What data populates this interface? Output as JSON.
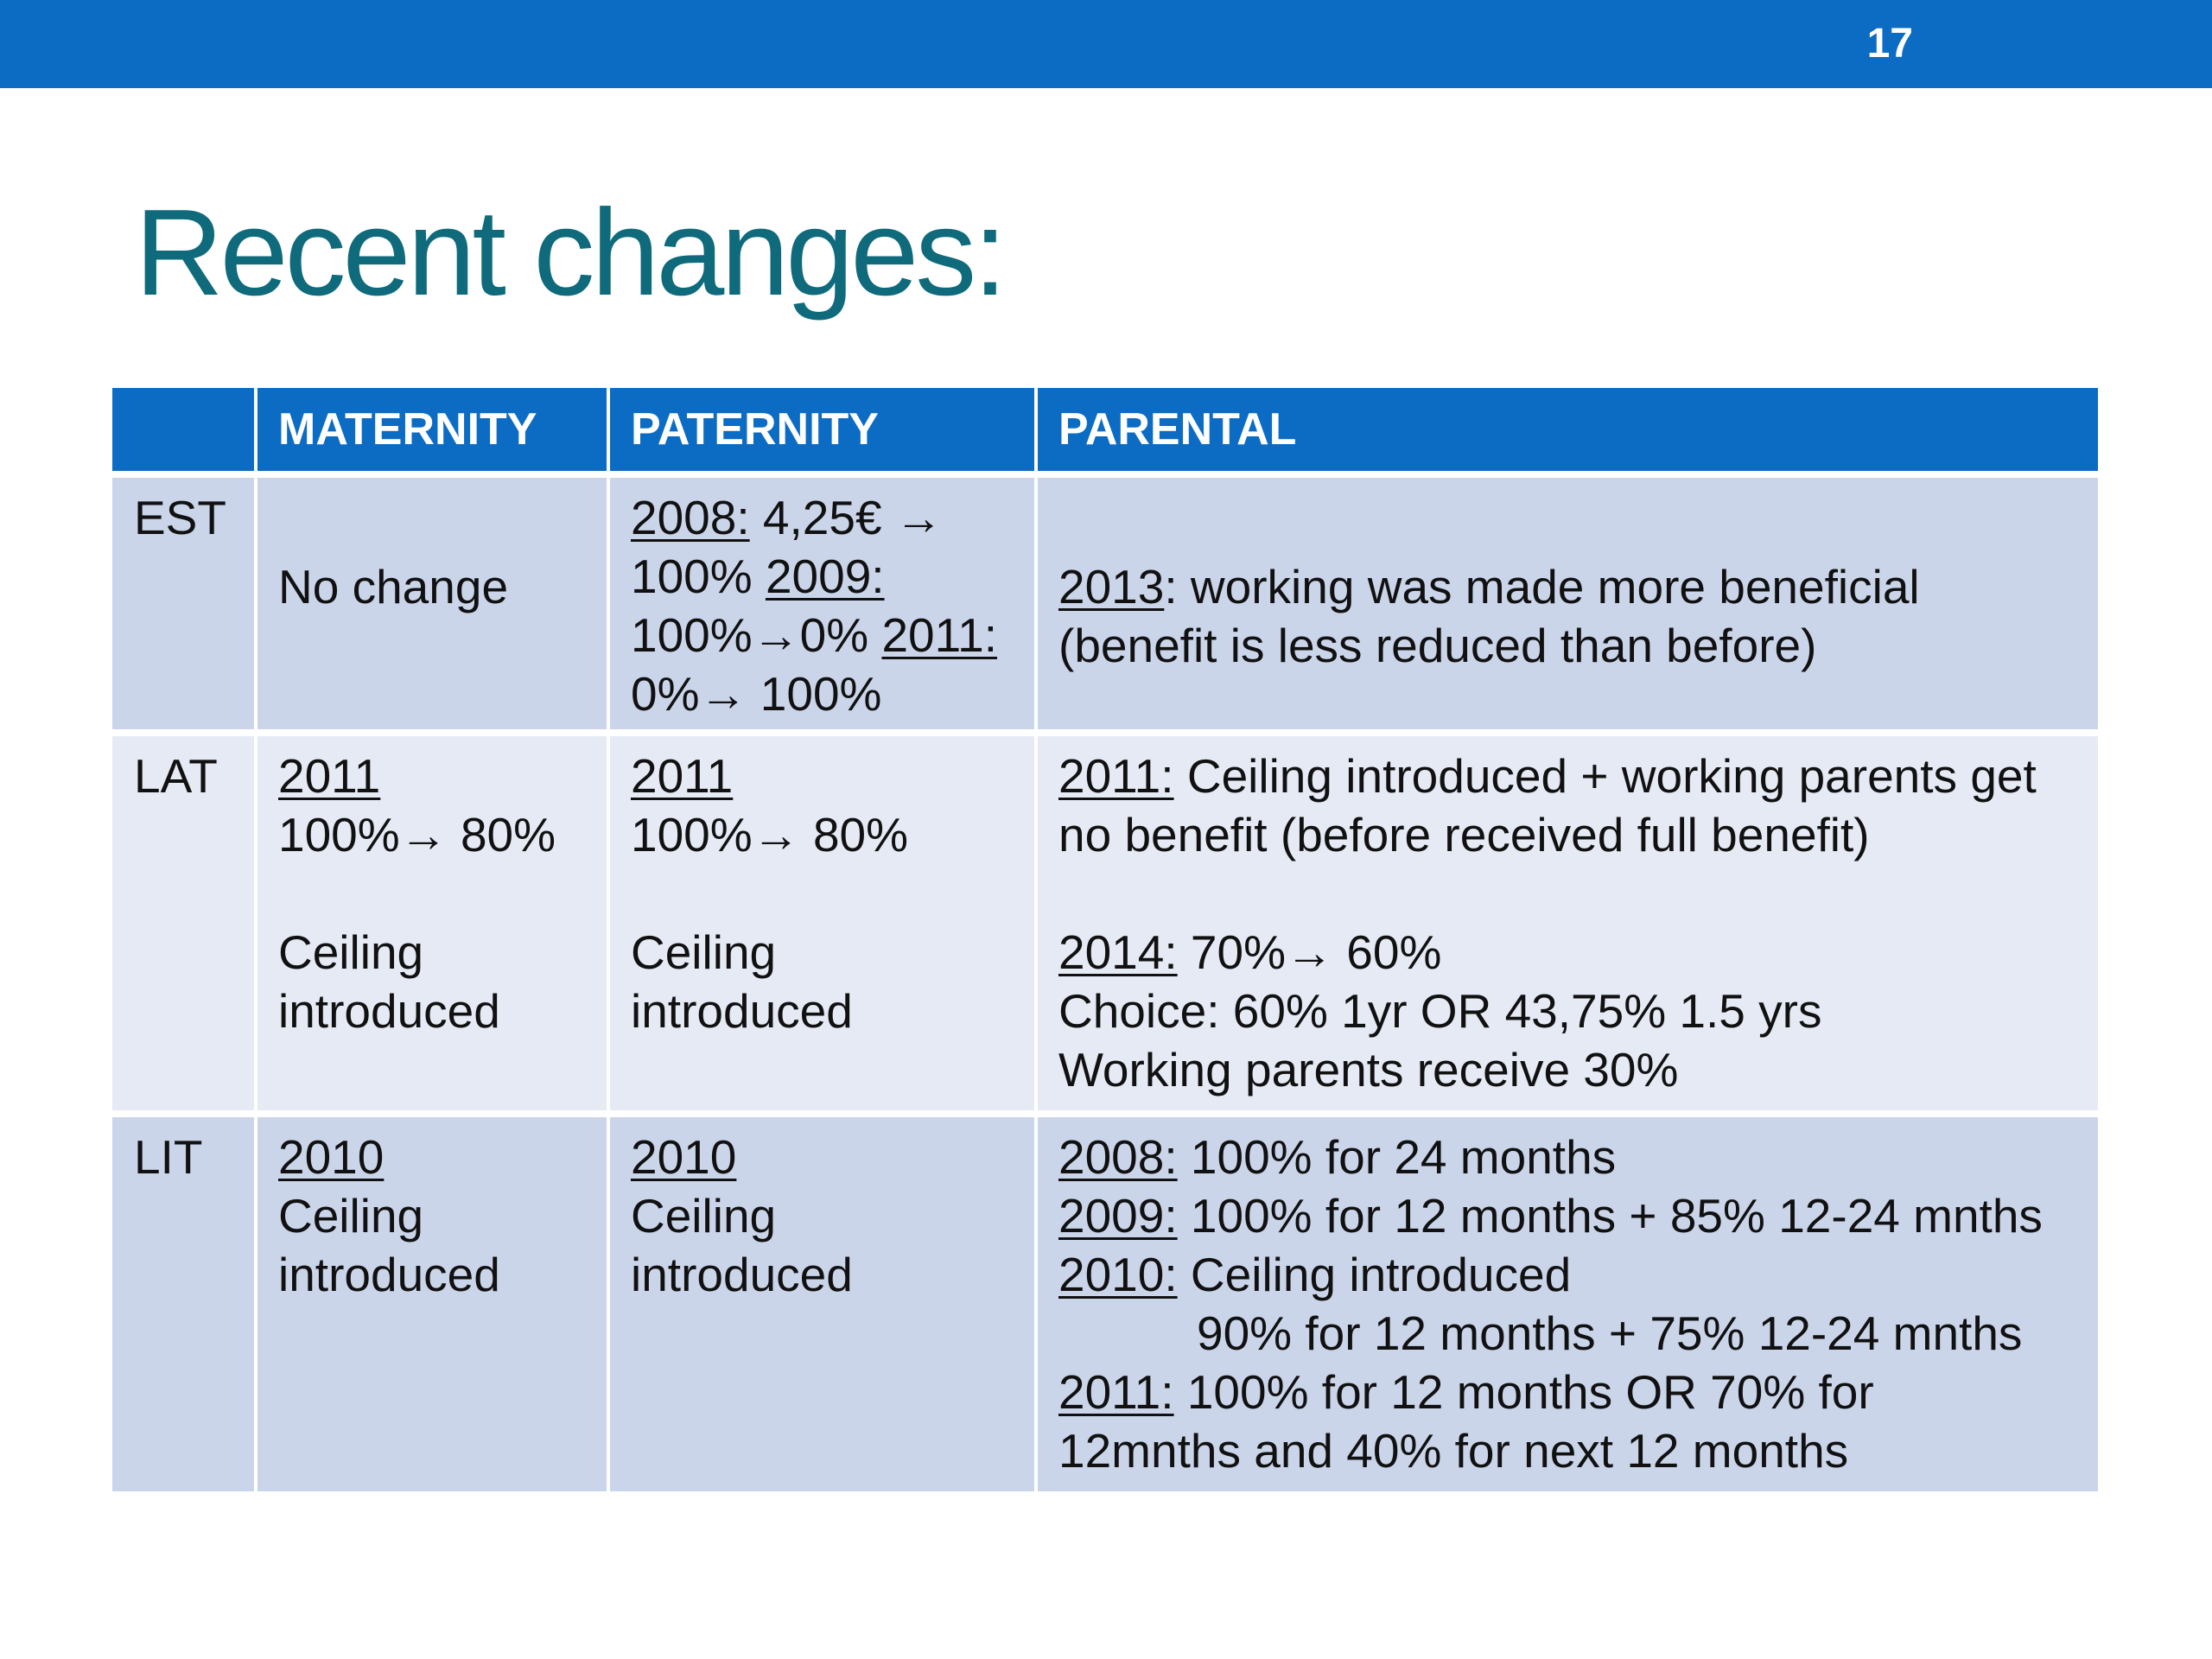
{
  "slide": {
    "page_number": "17",
    "title": "Recent changes:"
  },
  "table": {
    "headers": [
      "",
      "MATERNITY",
      "PATERNITY",
      "PARENTAL"
    ],
    "est": {
      "label": "EST",
      "maternity": "No change",
      "paternity": {
        "l1_year": "2008:",
        "l1_text": " 4,25€ →",
        "l2_text": "100% ",
        "l2_year": "2009:",
        "l3_text": "100%→0% ",
        "l3_year": "2011:",
        "l4_text": "0%→ 100%"
      },
      "parental": {
        "l1_year": "2013",
        "l1_text": ": working was made more beneficial",
        "l2_text": "(benefit is less reduced than before)"
      }
    },
    "lat": {
      "label": "LAT",
      "maternity": {
        "year": "2011",
        "change": "100%→ 80%",
        "l3": "Ceiling",
        "l4": "introduced"
      },
      "paternity": {
        "year": "2011",
        "change": "100%→ 80%",
        "l3": "Ceiling",
        "l4": "introduced"
      },
      "parental": {
        "l1_year": "2011:",
        "l1_text": " Ceiling introduced + working parents get",
        "l2_text": "no benefit (before received full benefit)",
        "l3_year": "2014:",
        "l3_text": " 70%→ 60%",
        "l4_text": "Choice:  60% 1yr OR 43,75% 1.5 yrs",
        "l5_text": "Working parents receive 30%"
      }
    },
    "lit": {
      "label": "LIT",
      "maternity": {
        "year": "2010",
        "l2": "Ceiling",
        "l3": "introduced"
      },
      "paternity": {
        "year": "2010",
        "l2": "Ceiling",
        "l3": "introduced"
      },
      "parental": {
        "l1_year": "2008:",
        "l1_text": " 100% for 24 months",
        "l2_year": "2009:",
        "l2_text": " 100% for 12 months + 85% 12-24 mnths",
        "l3_year": "2010:",
        "l3_text": " Ceiling introduced",
        "l4_text": "90% for 12 months + 75% 12-24 mnths",
        "l5_year": "2011:",
        "l5_text": " 100% for 12 months OR  70% for",
        "l6_text": "12mnths and 40% for next 12 months"
      }
    }
  }
}
